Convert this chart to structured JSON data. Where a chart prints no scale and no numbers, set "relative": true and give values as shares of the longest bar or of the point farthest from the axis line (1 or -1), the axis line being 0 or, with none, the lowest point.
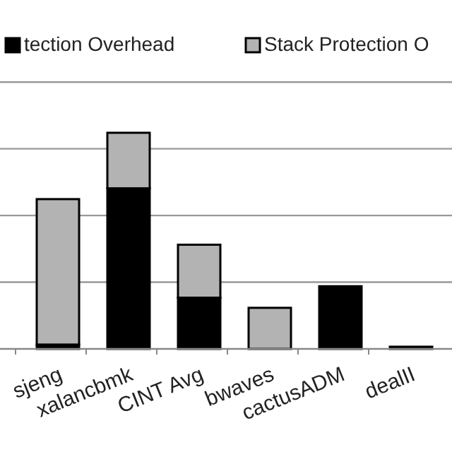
{
  "chart_data": {
    "type": "bar",
    "stacked": true,
    "relative": true,
    "categories": [
      "sjeng",
      "xalancbmk",
      "CINT Avg",
      "bwaves",
      "cactusADM",
      "dealII"
    ],
    "series": [
      {
        "name": "tection Overhead",
        "color": "#000000",
        "values": [
          0.02,
          0.743,
          0.237,
          0,
          0.29,
          0.01
        ]
      },
      {
        "name": "Stack Protection O",
        "color": "#b3b3b3",
        "values": [
          0.673,
          0.257,
          0.245,
          0.19,
          0,
          0
        ]
      }
    ],
    "grid": "y",
    "legend": "top"
  }
}
